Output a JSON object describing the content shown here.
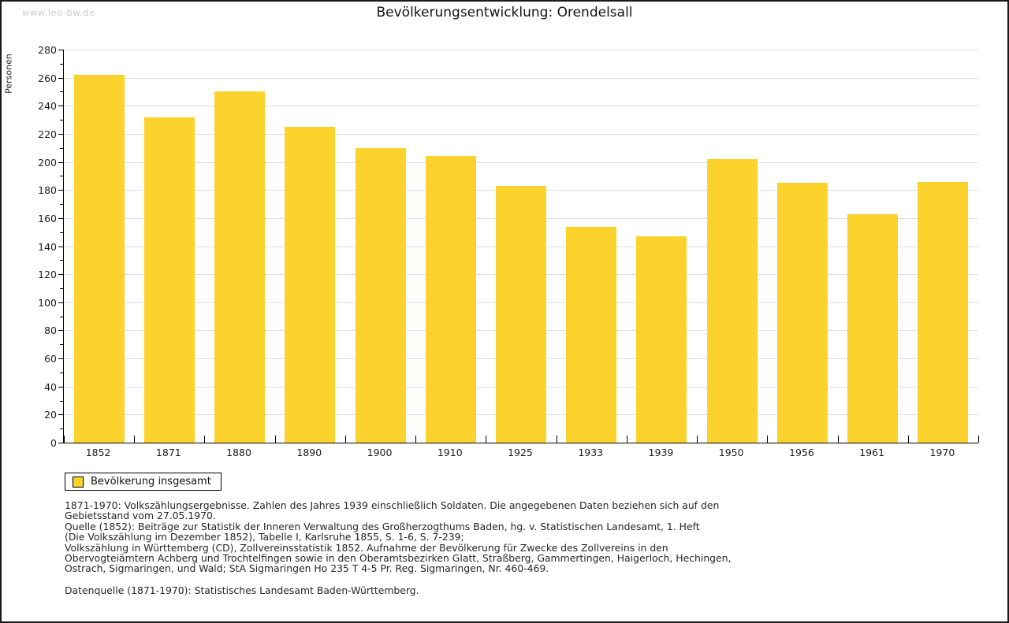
{
  "page": {
    "watermark": "www.leo-bw.de"
  },
  "chart_data": {
    "type": "bar",
    "title": "Bevölkerungsentwicklung: Orendelsall",
    "xlabel": "",
    "ylabel": "Personen",
    "categories": [
      "1852",
      "1871",
      "1880",
      "1890",
      "1900",
      "1910",
      "1925",
      "1933",
      "1939",
      "1950",
      "1956",
      "1961",
      "1970"
    ],
    "series": [
      {
        "name": "Bevölkerung insgesamt",
        "values": [
          262,
          232,
          250,
          225,
          210,
          204,
          183,
          154,
          147,
          202,
          185,
          163,
          186
        ]
      }
    ],
    "ylim": [
      0,
      280
    ],
    "ytick_step": 20,
    "yminor_step": 10,
    "grid": true,
    "legend_position": "bottom-left",
    "bar_color": "#fcd32d"
  },
  "legend": {
    "label": "Bevölkerung insgesamt",
    "swatch_color": "#fcd32d"
  },
  "footer": {
    "lines": [
      "1871-1970: Volkszählungsergebnisse. Zahlen des Jahres 1939 einschließlich Soldaten. Die angegebenen Daten beziehen sich auf den",
      "Gebietsstand vom 27.05.1970.",
      "Quelle (1852): Beiträge zur Statistik der Inneren Verwaltung des Großherzogthums Baden, hg. v. Statistischen Landesamt, 1. Heft",
      "(Die Volkszählung im Dezember 1852), Tabelle I, Karlsruhe 1855, S. 1-6, S. 7-239;",
      "Volkszählung in Württemberg (CD), Zollvereinsstatistik 1852. Aufnahme der Bevölkerung für Zwecke des Zollvereins in den",
      "Obervogteiämtern Achberg und Trochtelfingen sowie in den Oberamtsbezirken Glatt, Straßberg, Gammertingen, Haigerloch, Hechingen,",
      "Ostrach, Sigmaringen, und Wald; StA Sigmaringen Ho 235 T 4-5 Pr. Reg. Sigmaringen, Nr. 460-469."
    ],
    "datasource": "Datenquelle (1871-1970): Statistisches Landesamt Baden-Württemberg."
  },
  "colors": {
    "bar": "#fcd32d",
    "grid": "#dedede",
    "axis": "#000000",
    "watermark": "#cbcbcb"
  }
}
